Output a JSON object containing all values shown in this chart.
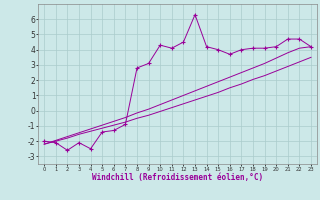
{
  "xlabel": "Windchill (Refroidissement éolien,°C)",
  "x_data": [
    0,
    1,
    2,
    3,
    4,
    5,
    6,
    7,
    8,
    9,
    10,
    11,
    12,
    13,
    14,
    15,
    16,
    17,
    18,
    19,
    20,
    21,
    22,
    23
  ],
  "y_measured": [
    -2.0,
    -2.1,
    -2.6,
    -2.1,
    -2.5,
    -1.4,
    -1.3,
    -0.9,
    2.8,
    3.1,
    4.3,
    4.1,
    4.5,
    6.3,
    4.2,
    4.0,
    3.7,
    4.0,
    4.1,
    4.1,
    4.2,
    4.7,
    4.7,
    4.2
  ],
  "y_line1": [
    -2.2,
    -2.0,
    -1.8,
    -1.55,
    -1.35,
    -1.15,
    -0.95,
    -0.75,
    -0.5,
    -0.3,
    -0.05,
    0.2,
    0.45,
    0.7,
    0.95,
    1.2,
    1.5,
    1.75,
    2.05,
    2.3,
    2.6,
    2.9,
    3.2,
    3.5
  ],
  "y_line2": [
    -2.2,
    -1.95,
    -1.7,
    -1.45,
    -1.2,
    -0.95,
    -0.7,
    -0.45,
    -0.15,
    0.1,
    0.4,
    0.7,
    1.0,
    1.3,
    1.6,
    1.9,
    2.2,
    2.5,
    2.8,
    3.1,
    3.45,
    3.8,
    4.1,
    4.2
  ],
  "color": "#990099",
  "bg_color": "#cce8e8",
  "grid_color": "#aacccc",
  "ylim": [
    -3.5,
    7.0
  ],
  "xlim": [
    -0.5,
    23.5
  ],
  "yticks": [
    -3,
    -2,
    -1,
    0,
    1,
    2,
    3,
    4,
    5,
    6
  ],
  "xticks": [
    0,
    1,
    2,
    3,
    4,
    5,
    6,
    7,
    8,
    9,
    10,
    11,
    12,
    13,
    14,
    15,
    16,
    17,
    18,
    19,
    20,
    21,
    22,
    23
  ]
}
